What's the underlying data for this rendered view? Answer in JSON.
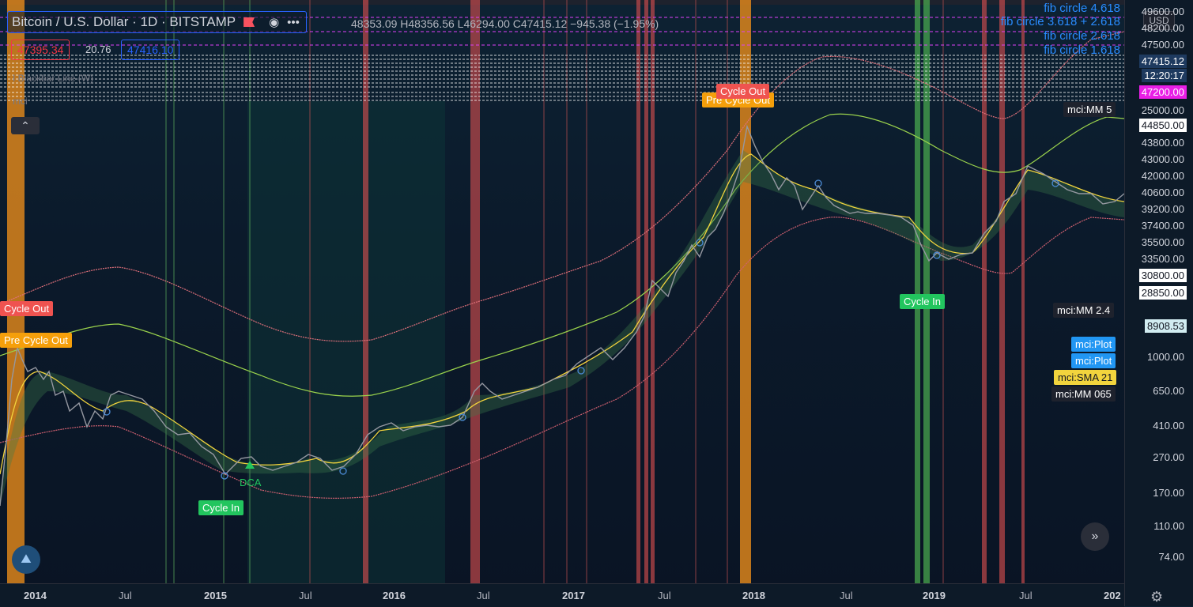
{
  "header": {
    "symbol_title": "Bitcoin / U.S. Dollar · 1D · BITSTAMP",
    "ohlc": "48353.09 H48356.56 L46294.00 C47415.12 −945.38 (−1.95%)",
    "bid": "47395.34",
    "spread": "20.76",
    "ask": "47416.10",
    "indicator_line": "I  Blackbar Line  (W)",
    "indicator_name": "mci",
    "currency": "USD"
  },
  "fib_labels": [
    "fib circle 4.618",
    "fib circle 3.618 + 2.618",
    "fib circle 2.618",
    "fib circle 1.618"
  ],
  "price_axis": {
    "labels": [
      "49600.00",
      "48200.00",
      "47500.00",
      "47415.12",
      "12:20:17",
      "47200.00",
      "25000.00",
      "44850.00",
      "43800.00",
      "43000.00",
      "42000.00",
      "40600.00",
      "39200.00",
      "37400.00",
      "35500.00",
      "33500.00",
      "30800.00",
      "28850.00",
      "8908.53",
      "1000.00",
      "650.00",
      "410.00",
      "270.00",
      "170.00",
      "110.00",
      "74.00"
    ]
  },
  "axis_tags": {
    "mm5": "mci:MM 5",
    "mm24": "mci:MM 2.4",
    "plot1": "mci:Plot",
    "plot2": "mci:Plot",
    "sma21": "mci:SMA 21",
    "mm065": "mci:MM 065"
  },
  "time_axis": [
    "2014",
    "Jul",
    "2015",
    "Jul",
    "2016",
    "Jul",
    "2017",
    "Jul",
    "2018",
    "Jul",
    "2019",
    "Jul",
    "202"
  ],
  "signals": {
    "cycle_out_1": "Cycle Out",
    "pre_cycle_out_1": "Pre Cycle Out",
    "cycle_out_2": "Cycle Out",
    "pre_cycle_out_2": "Pre Cycle Out",
    "cycle_in_1": "Cycle In",
    "cycle_in_2": "Cycle In",
    "dca": "DCA"
  },
  "colors": {
    "orange_band": "#f7931a",
    "red_band": "#e05050",
    "green_band": "#4caf50",
    "price": "#9598a1",
    "sma": "#f2d43d",
    "upper_band": "#e0707a",
    "mid_band": "#9bd34c",
    "lower_band": "#d06070",
    "accent": "#2962ff"
  }
}
